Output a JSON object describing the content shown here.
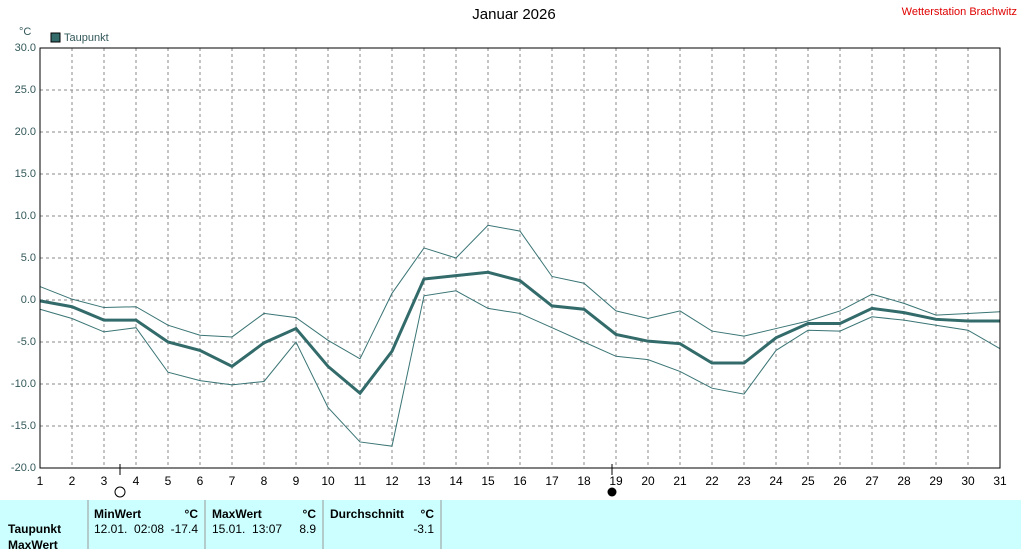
{
  "chart_data": {
    "type": "line",
    "title": "Januar 2026",
    "station": "Wetterstation Brachwitz",
    "y_unit": "°C",
    "x": [
      1,
      2,
      3,
      4,
      5,
      6,
      7,
      8,
      9,
      10,
      11,
      12,
      13,
      14,
      15,
      16,
      17,
      18,
      19,
      20,
      21,
      22,
      23,
      24,
      25,
      26,
      27,
      28,
      29,
      30,
      31
    ],
    "xlim": [
      1,
      31
    ],
    "ylim": [
      -20,
      30
    ],
    "yticks": [
      {
        "value": 30,
        "label": "30.0"
      },
      {
        "value": 25,
        "label": "25.0"
      },
      {
        "value": 20,
        "label": "20.0"
      },
      {
        "value": 15,
        "label": "15.0"
      },
      {
        "value": 10,
        "label": "10.0"
      },
      {
        "value": 5,
        "label": "5.0"
      },
      {
        "value": 0,
        "label": "0.0"
      },
      {
        "value": -5,
        "label": "-5.0"
      },
      {
        "value": -10,
        "label": "-10.0"
      },
      {
        "value": -15,
        "label": "-15.0"
      },
      {
        "value": -20,
        "label": "-20.0"
      }
    ],
    "grid": true,
    "series": [
      {
        "name": "Taupunkt",
        "color": "#336b6b",
        "values": [
          -0.1,
          -0.8,
          -2.4,
          -2.4,
          -5.0,
          -6.0,
          -7.9,
          -5.1,
          -3.4,
          -7.9,
          -11.1,
          -6.1,
          2.5,
          2.9,
          3.3,
          2.3,
          -0.7,
          -1.1,
          -4.1,
          -4.9,
          -5.2,
          -7.5,
          -7.5,
          -4.5,
          -2.8,
          -2.8,
          -1.0,
          -1.5,
          -2.3,
          -2.5,
          -2.5
        ]
      },
      {
        "color": "#3a7474",
        "values": [
          1.6,
          0.1,
          -0.9,
          -0.8,
          -3.0,
          -4.2,
          -4.4,
          -1.6,
          -2.1,
          -4.8,
          -7.0,
          0.8,
          6.2,
          5.0,
          8.9,
          8.2,
          2.8,
          2.0,
          -1.3,
          -2.2,
          -1.3,
          -3.7,
          -4.3,
          -3.4,
          -2.5,
          -1.3,
          0.7,
          -0.4,
          -1.8,
          -1.6,
          -1.4
        ]
      },
      {
        "color": "#3a7474",
        "values": [
          -1.1,
          -2.2,
          -3.8,
          -3.3,
          -8.6,
          -9.6,
          -10.1,
          -9.7,
          -5.0,
          -12.8,
          -16.9,
          -17.4,
          0.5,
          1.1,
          -1.0,
          -1.6,
          -3.3,
          -5.0,
          -6.7,
          -7.1,
          -8.5,
          -10.5,
          -11.2,
          -6.0,
          -3.6,
          -3.7,
          -2.0,
          -2.4,
          -3.0,
          -3.6,
          -5.8
        ]
      }
    ]
  },
  "table": {
    "header": [
      "MinWert",
      "°C",
      "MaxWert",
      "°C",
      "Durchschnitt",
      "°C"
    ],
    "rows": [
      [
        "Taupunkt",
        "12.01.  02:08",
        "-17.4",
        "15.01.  13:07",
        "8.9",
        "-3.1"
      ],
      [
        "MaxWert"
      ]
    ]
  }
}
